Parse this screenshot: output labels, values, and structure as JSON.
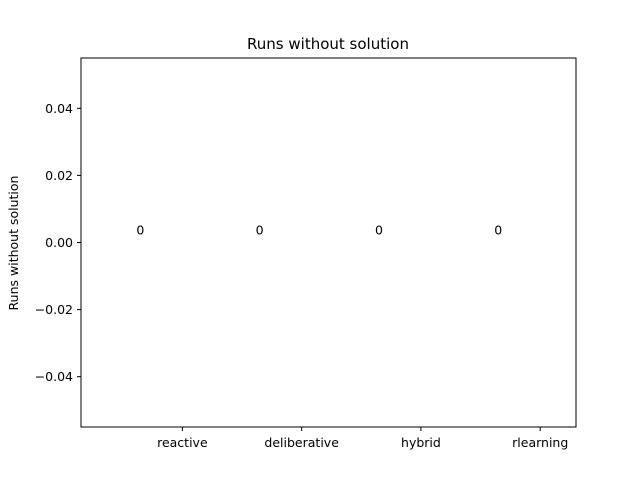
{
  "chart_data": {
    "type": "bar",
    "title": "Runs without solution",
    "xlabel": "",
    "ylabel": "Runs without solution",
    "categories": [
      "reactive",
      "deliberative",
      "hybrid",
      "rlearning"
    ],
    "values": [
      0,
      0,
      0,
      0
    ],
    "data_labels": [
      "0",
      "0",
      "0",
      "0"
    ],
    "ylim": [
      -0.055,
      0.055
    ],
    "yticks": [
      -0.04,
      -0.02,
      0.0,
      0.02,
      0.04
    ],
    "ytick_labels": [
      "−0.04",
      "−0.02",
      "0.00",
      "0.02",
      "0.04"
    ],
    "grid": false,
    "legend": "none",
    "colors": {
      "axis": "#000000",
      "background": "#ffffff"
    }
  }
}
